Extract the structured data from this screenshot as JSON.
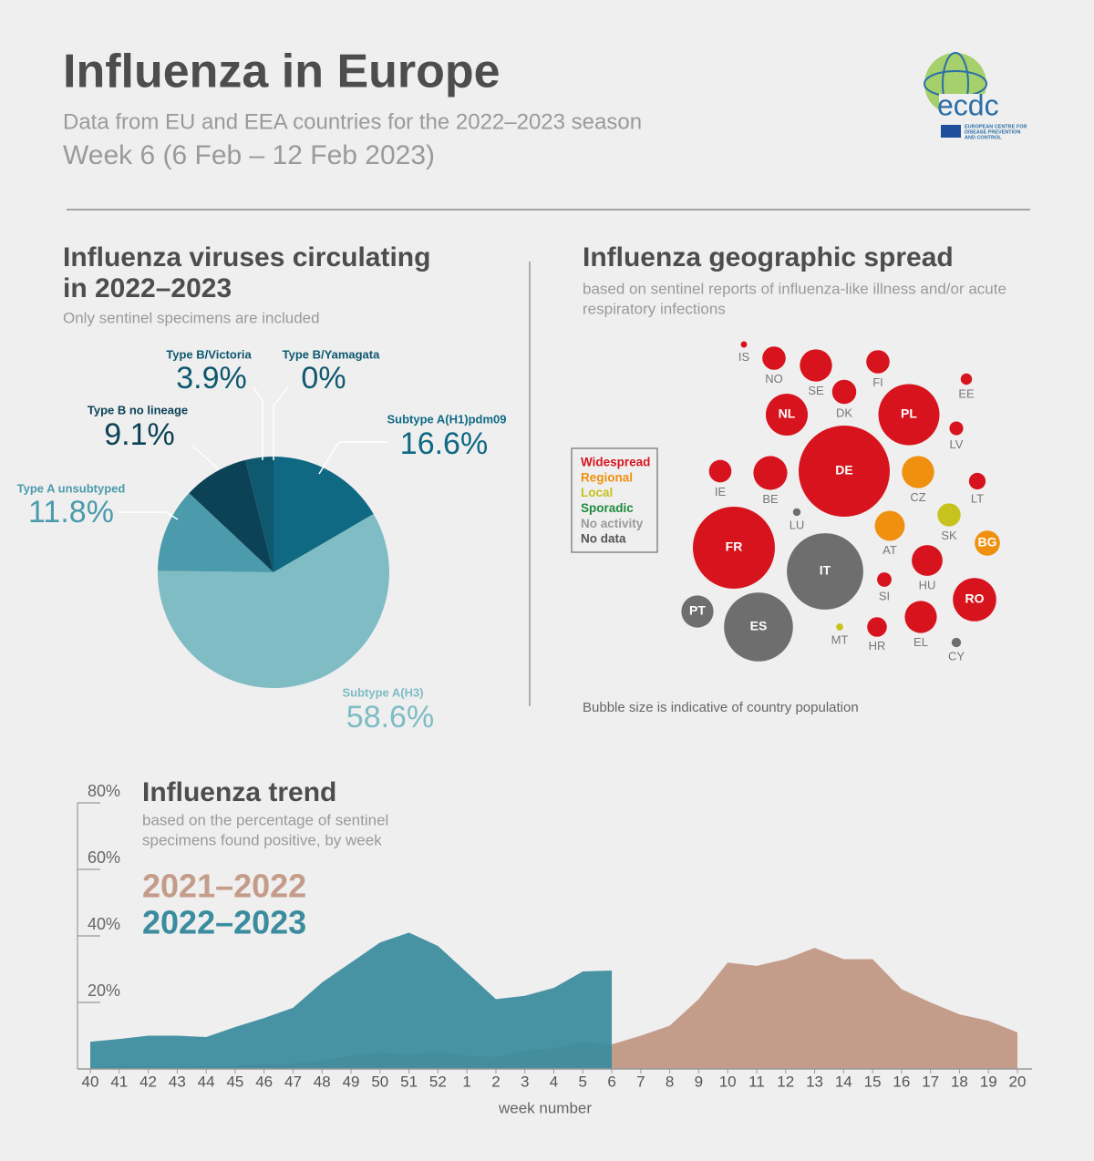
{
  "header": {
    "title": "Influenza in Europe",
    "subtitle": "Data from EU and EEA countries for the 2022–2023 season",
    "week": "Week 6 (6 Feb – 12 Feb 2023)",
    "logo": {
      "name": "ecdc",
      "lines": [
        "EUROPEAN CENTRE FOR",
        "DISEASE PREVENTION",
        "AND CONTROL"
      ]
    }
  },
  "chart_data": [
    {
      "type": "pie",
      "title_lines": [
        "Influenza viruses circulating",
        "in 2022–2023"
      ],
      "note": "Only sentinel specimens are included",
      "categories": [
        "Subtype A(H1)pdm09",
        "Subtype A(H3)",
        "Type A unsubtyped",
        "Type B no lineage",
        "Type B/Victoria",
        "Type B/Yamagata"
      ],
      "values": [
        16.6,
        58.6,
        11.8,
        9.1,
        3.9,
        0
      ],
      "value_labels": [
        "16.6%",
        "58.6%",
        "11.8%",
        "9.1%",
        "3.9%",
        "0%"
      ],
      "colors": [
        "#0f6983",
        "#7fbcc4",
        "#4b9bac",
        "#0c4256",
        "#0e5870",
        "#0e5870"
      ]
    },
    {
      "type": "bubble",
      "title": "Influenza geographic spread",
      "subtitle_lines": [
        "based on sentinel reports of influenza-like illness and/or acute",
        "respiratory infections"
      ],
      "legend": [
        {
          "label": "Widespread",
          "color": "#d7141e"
        },
        {
          "label": "Regional",
          "color": "#f0900f"
        },
        {
          "label": "Local",
          "color": "#c6c21e"
        },
        {
          "label": "Sporadic",
          "color": "#1e8c3c"
        },
        {
          "label": "No activity",
          "color": "#9a9a9a"
        },
        {
          "label": "No data",
          "color": "#555555"
        }
      ],
      "categories": [
        "IS",
        "NO",
        "SE",
        "FI",
        "EE",
        "DK",
        "NL",
        "PL",
        "LV",
        "DE",
        "IE",
        "BE",
        "CZ",
        "LT",
        "LU",
        "SK",
        "AT",
        "BG",
        "FR",
        "IT",
        "HU",
        "SI",
        "RO",
        "PT",
        "ES",
        "MT",
        "HR",
        "EL",
        "CY"
      ],
      "values": [
        0.4,
        5.5,
        10.5,
        5.5,
        1.3,
        5.9,
        17.8,
        37.7,
        1.9,
        84,
        5.1,
        11.6,
        10.5,
        2.8,
        0.6,
        5.4,
        9.1,
        6.4,
        68,
        59,
        9.6,
        2.1,
        19,
        10.4,
        48,
        0.5,
        3.9,
        10.4,
        0.9
      ],
      "colors": [
        "#d7141e",
        "#d7141e",
        "#d7141e",
        "#d7141e",
        "#d7141e",
        "#d7141e",
        "#d7141e",
        "#d7141e",
        "#d7141e",
        "#d7141e",
        "#d7141e",
        "#d7141e",
        "#f0900f",
        "#d7141e",
        "#6e6e6e",
        "#c6c21e",
        "#f0900f",
        "#f0900f",
        "#d7141e",
        "#6e6e6e",
        "#d7141e",
        "#d7141e",
        "#d7141e",
        "#6e6e6e",
        "#6e6e6e",
        "#c6c21e",
        "#d7141e",
        "#d7141e",
        "#6e6e6e"
      ],
      "note": "Bubble size is indicative of country population"
    },
    {
      "type": "area",
      "title": "Influenza trend",
      "subtitle_lines": [
        "based on the percentage of sentinel",
        "specimens found positive, by week"
      ],
      "xlabel": "week number",
      "categories": [
        "40",
        "41",
        "42",
        "43",
        "44",
        "45",
        "46",
        "47",
        "48",
        "49",
        "50",
        "51",
        "52",
        "1",
        "2",
        "3",
        "4",
        "5",
        "6",
        "7",
        "8",
        "9",
        "10",
        "11",
        "12",
        "13",
        "14",
        "15",
        "16",
        "17",
        "18",
        "19",
        "20"
      ],
      "series": [
        {
          "name": "2021–2022",
          "color": "#c49c8a",
          "values": [
            0.5,
            1,
            1,
            0.5,
            1,
            1,
            1.4,
            1.6,
            2.5,
            4,
            5,
            4.4,
            5.2,
            4,
            3.6,
            5.5,
            6.3,
            8.2,
            7.4,
            10,
            13,
            21,
            32,
            31,
            33,
            36.4,
            33,
            33,
            24,
            20,
            16.4,
            14.5,
            11
          ]
        },
        {
          "name": "2022–2023",
          "color": "#3a8c9e",
          "values": [
            8.2,
            9,
            10,
            10,
            9.6,
            12.6,
            15.3,
            18.4,
            26,
            32,
            38,
            41,
            37,
            29,
            21,
            22,
            24.4,
            29.3,
            29.6,
            null,
            null,
            null,
            null,
            null,
            null,
            null,
            null,
            null,
            null,
            null,
            null,
            null,
            null
          ]
        }
      ],
      "ylim": [
        0,
        80
      ],
      "yticks": [
        {
          "value": 20,
          "label": "20%"
        },
        {
          "value": 40,
          "label": "40%"
        },
        {
          "value": 60,
          "label": "60%"
        },
        {
          "value": 80,
          "label": "80%"
        }
      ]
    }
  ]
}
